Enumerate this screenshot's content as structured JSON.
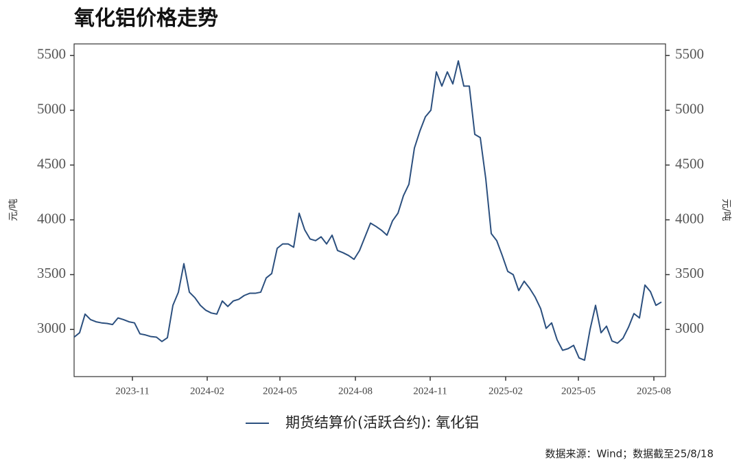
{
  "chart_data": {
    "type": "line",
    "title": "氧化铝价格走势",
    "ylabel": "元/吨",
    "y2label": "元/吨",
    "source": "数据来源：Wind；数据截至25/8/18",
    "categories": [
      null,
      null,
      null,
      null,
      null,
      null,
      null,
      null,
      null,
      null,
      null,
      null,
      null,
      null,
      null,
      null,
      null,
      null,
      null,
      null,
      null,
      null,
      null,
      null,
      null,
      null,
      null,
      null,
      null,
      null,
      null,
      null,
      null,
      null,
      null,
      null,
      null,
      null,
      null,
      null,
      null,
      null,
      null,
      null,
      null,
      null,
      null,
      null,
      null,
      null,
      null,
      null,
      null,
      null,
      null,
      null,
      null,
      null,
      null,
      null,
      null,
      null,
      null,
      null,
      null,
      null,
      null,
      null,
      null,
      null,
      null,
      null,
      null,
      null,
      null,
      null,
      null,
      null,
      null,
      null,
      null,
      null,
      null,
      null,
      null,
      null,
      null,
      null,
      null,
      null,
      null,
      null,
      null,
      null,
      null,
      null,
      null,
      null,
      null,
      null,
      null,
      null,
      null,
      null,
      null,
      null,
      null,
      null
    ],
    "series": [
      {
        "name": "期货结算价(活跃合约): 氧化铝",
        "color": "#2b4f7e",
        "values": [
          2930,
          2970,
          3140,
          3090,
          3070,
          3060,
          3055,
          3045,
          3105,
          3090,
          3070,
          3060,
          2960,
          2950,
          2935,
          2930,
          2890,
          2925,
          3220,
          3340,
          3600,
          3340,
          3290,
          3220,
          3175,
          3150,
          3140,
          3260,
          3210,
          3260,
          3275,
          3310,
          3330,
          3330,
          3340,
          3470,
          3510,
          3740,
          3780,
          3780,
          3750,
          4060,
          3910,
          3825,
          3810,
          3845,
          3780,
          3860,
          3720,
          3700,
          3675,
          3640,
          3720,
          3845,
          3970,
          3940,
          3905,
          3860,
          3990,
          4060,
          4220,
          4325,
          4655,
          4810,
          4940,
          5000,
          5350,
          5220,
          5350,
          5240,
          5450,
          5220,
          5220,
          4780,
          4750,
          4375,
          3875,
          3810,
          3675,
          3530,
          3500,
          3355,
          3440,
          3375,
          3295,
          3190,
          3010,
          3060,
          2905,
          2810,
          2825,
          2855,
          2740,
          2720,
          3000,
          3220,
          2970,
          3030,
          2895,
          2875,
          2920,
          3020,
          3145,
          3105,
          3405,
          3345,
          3220,
          3250
        ]
      }
    ],
    "xlim": [
      0,
      107.75
    ],
    "xticks": [
      {
        "value": 10.625,
        "label": "2023-11"
      },
      {
        "value": 24.25,
        "label": "2024-02"
      },
      {
        "value": 37.5,
        "label": "2024-05"
      },
      {
        "value": 51.25,
        "label": "2024-08"
      },
      {
        "value": 64.875,
        "label": "2024-11"
      },
      {
        "value": 78.625,
        "label": "2025-02"
      },
      {
        "value": 91.875,
        "label": "2025-05"
      },
      {
        "value": 105.625,
        "label": "2025-08"
      }
    ],
    "ylim": [
      2570,
      5605
    ],
    "yticks": [
      3000,
      3500,
      4000,
      4500,
      5000,
      5500
    ],
    "y2lim": [
      2570,
      5605
    ],
    "y2ticks": [
      3000,
      3500,
      4000,
      4500,
      5000,
      5500
    ],
    "legend": "bottom"
  }
}
